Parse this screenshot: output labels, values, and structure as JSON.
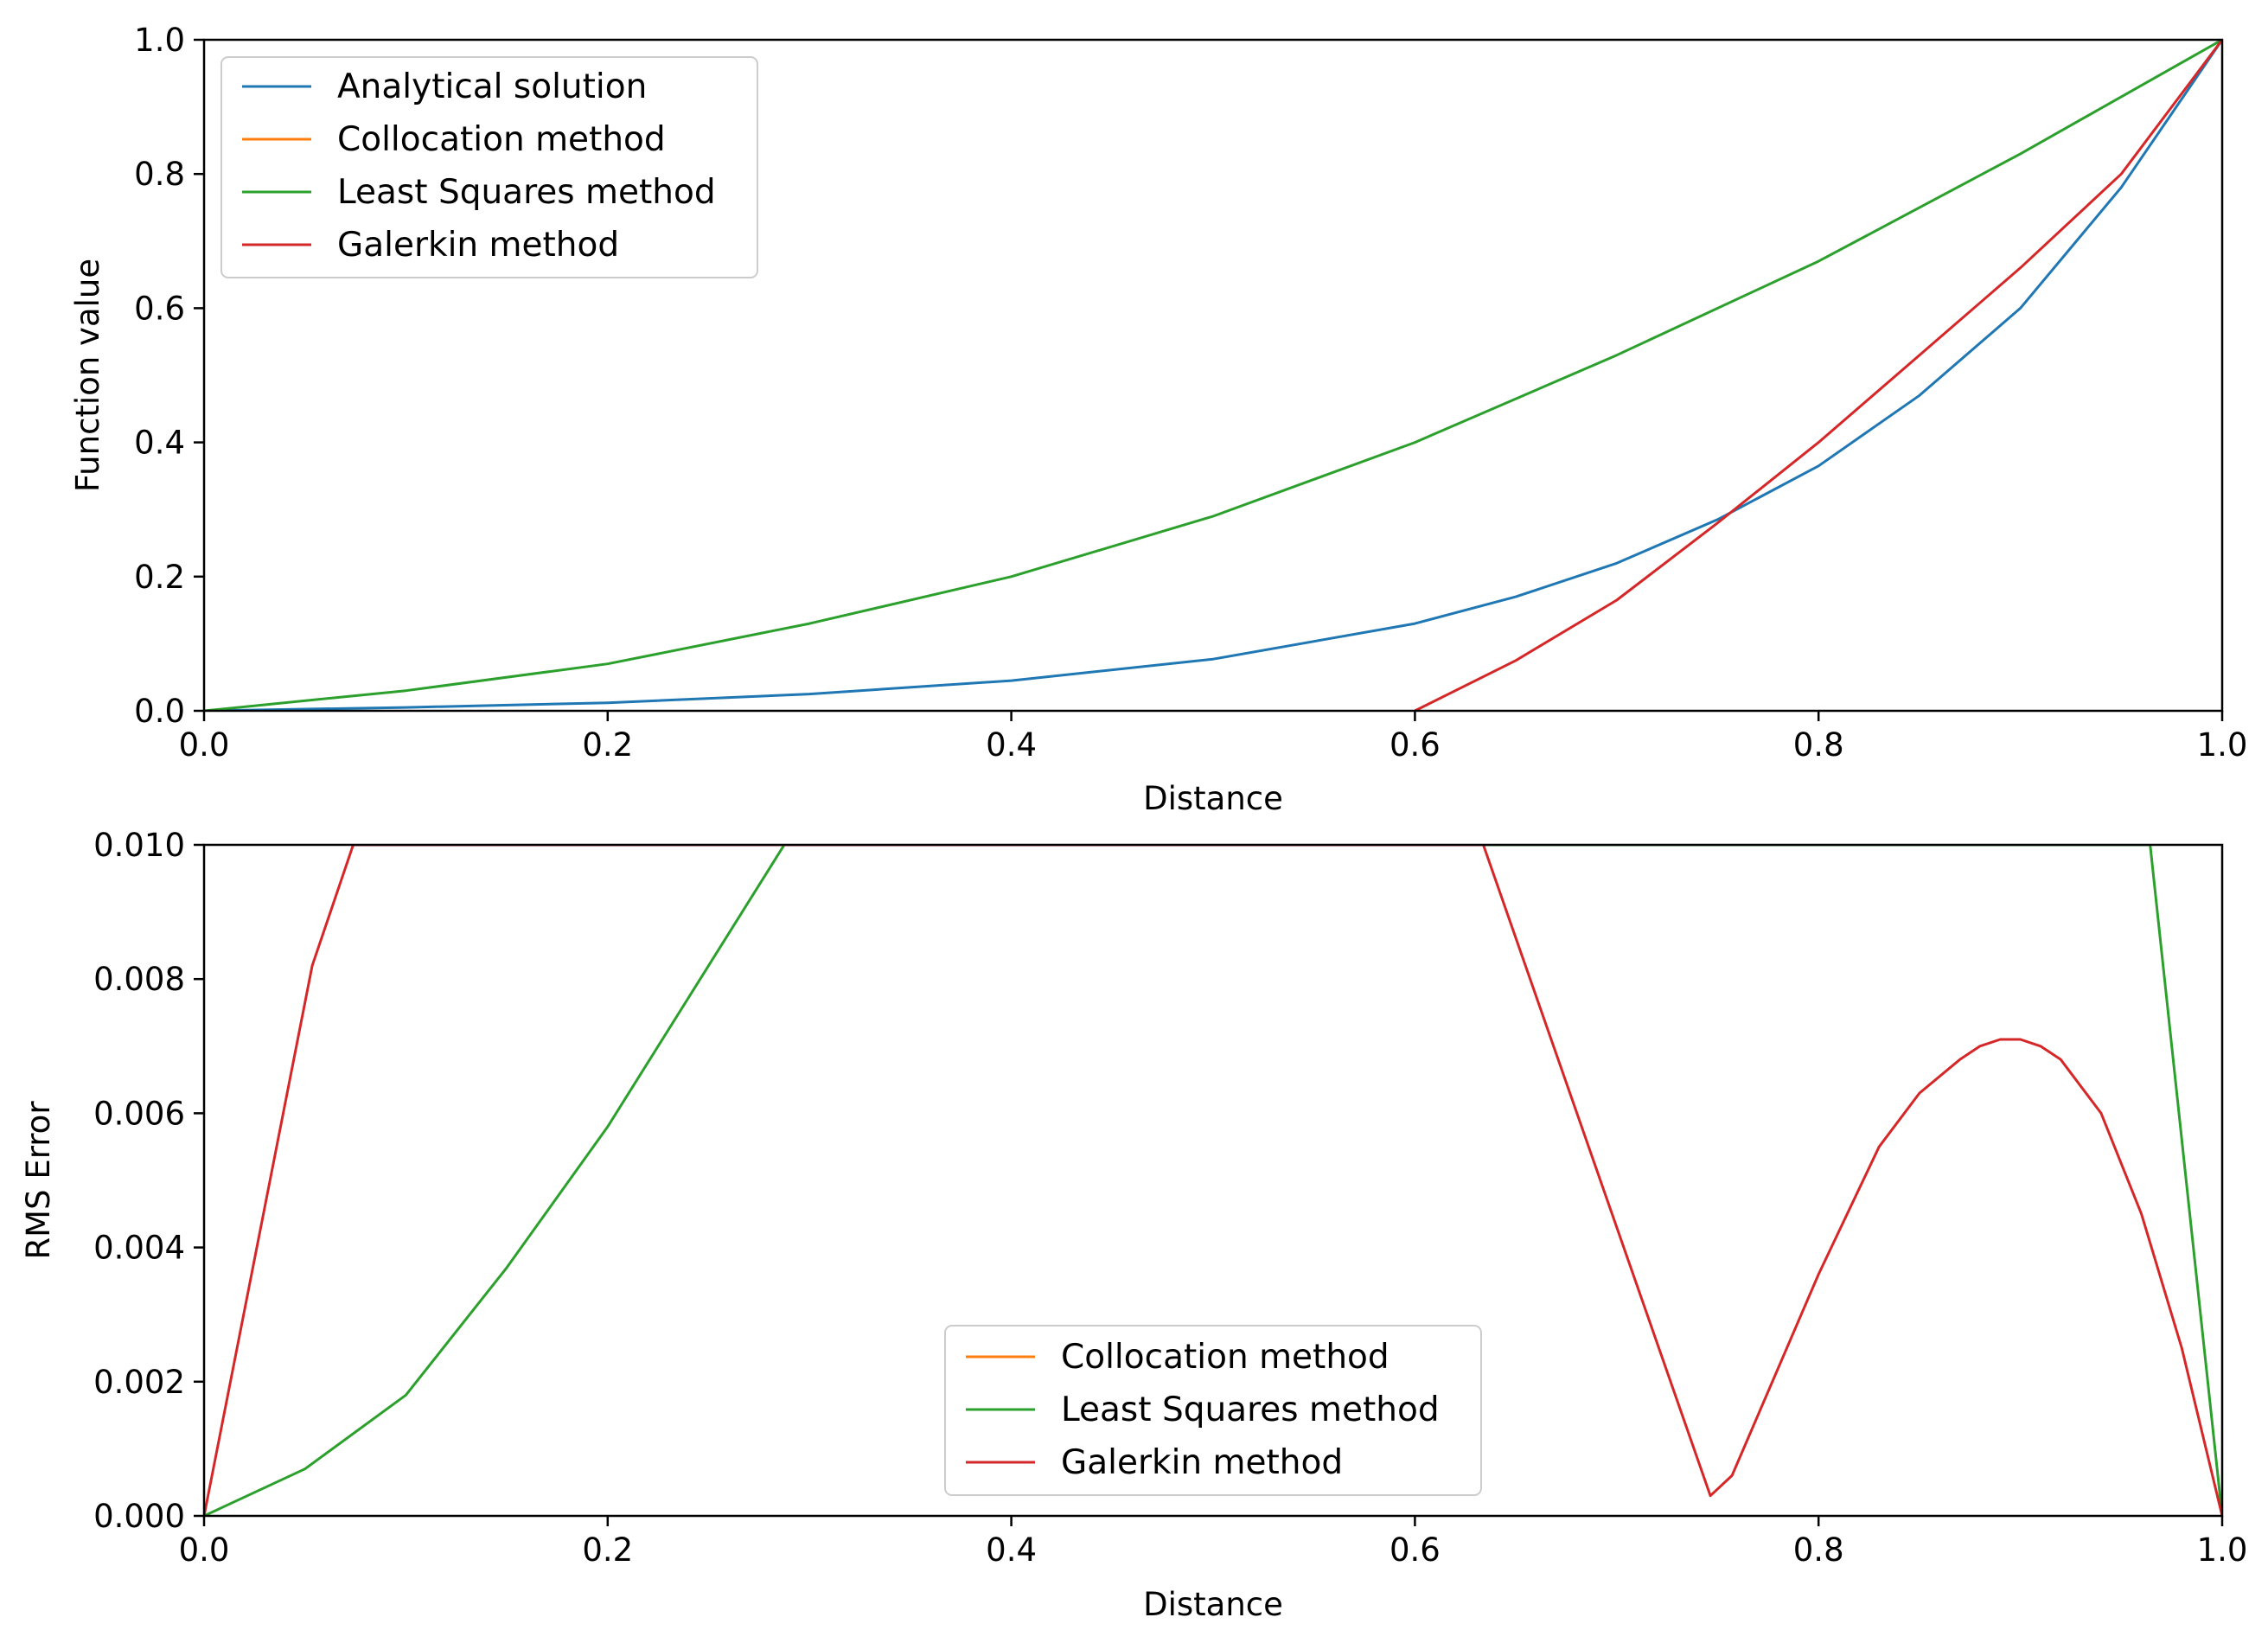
{
  "colors": {
    "analytical": "#1f77b4",
    "collocation": "#ff7f0e",
    "least_squares": "#2ca02c",
    "galerkin": "#d62728",
    "axes": "#000000",
    "legend_border": "#cccccc",
    "background": "#ffffff"
  },
  "chart_data": [
    {
      "type": "line",
      "xlabel": "Distance",
      "ylabel": "Function value",
      "xlim": [
        0.0,
        1.0
      ],
      "ylim": [
        0.0,
        1.0
      ],
      "xticks": [
        "0.0",
        "0.2",
        "0.4",
        "0.6",
        "0.8",
        "1.0"
      ],
      "yticks": [
        "0.0",
        "0.2",
        "0.4",
        "0.6",
        "0.8",
        "1.0"
      ],
      "grid": false,
      "legend_position": "top-left",
      "series": [
        {
          "name": "Analytical solution",
          "color_key": "analytical",
          "x": [
            0.0,
            0.1,
            0.2,
            0.3,
            0.4,
            0.5,
            0.6,
            0.65,
            0.7,
            0.75,
            0.8,
            0.85,
            0.9,
            0.95,
            1.0
          ],
          "y": [
            0.0,
            0.005,
            0.012,
            0.025,
            0.045,
            0.077,
            0.13,
            0.17,
            0.22,
            0.285,
            0.365,
            0.47,
            0.6,
            0.78,
            1.0
          ]
        },
        {
          "name": "Collocation method",
          "color_key": "collocation",
          "x": [],
          "y": []
        },
        {
          "name": "Least Squares method",
          "color_key": "least_squares",
          "x": [
            0.0,
            0.1,
            0.2,
            0.3,
            0.4,
            0.5,
            0.6,
            0.7,
            0.8,
            0.9,
            1.0
          ],
          "y": [
            0.0,
            0.03,
            0.07,
            0.13,
            0.2,
            0.29,
            0.4,
            0.53,
            0.67,
            0.83,
            1.0
          ]
        },
        {
          "name": "Galerkin method",
          "color_key": "galerkin",
          "x": [
            0.6,
            0.65,
            0.7,
            0.75,
            0.8,
            0.85,
            0.9,
            0.95,
            1.0
          ],
          "y": [
            0.0,
            0.075,
            0.165,
            0.28,
            0.4,
            0.53,
            0.66,
            0.8,
            1.0
          ]
        }
      ]
    },
    {
      "type": "line",
      "xlabel": "Distance",
      "ylabel": "RMS Error",
      "xlim": [
        0.0,
        1.0
      ],
      "ylim": [
        0.0,
        0.01
      ],
      "xticks": [
        "0.0",
        "0.2",
        "0.4",
        "0.6",
        "0.8",
        "1.0"
      ],
      "yticks": [
        "0.000",
        "0.002",
        "0.004",
        "0.006",
        "0.008",
        "0.010"
      ],
      "grid": false,
      "legend_position": "lower-center",
      "series": [
        {
          "name": "Collocation method",
          "color_key": "collocation",
          "x": [],
          "y": []
        },
        {
          "name": "Least Squares method",
          "color_key": "least_squares",
          "x": [
            0.0,
            0.05,
            0.1,
            0.15,
            0.2,
            0.25,
            0.2875,
            0.9643,
            1.0
          ],
          "y": [
            0.0,
            0.0007,
            0.0018,
            0.0037,
            0.0058,
            0.0082,
            0.01,
            0.01,
            0.0
          ]
        },
        {
          "name": "Galerkin method",
          "color_key": "galerkin",
          "x": [
            0.0,
            0.0536,
            0.0739,
            0.6339,
            0.7464,
            0.7571,
            0.8,
            0.83,
            0.85,
            0.87,
            0.88,
            0.89,
            0.9,
            0.91,
            0.92,
            0.94,
            0.96,
            0.98,
            1.0
          ],
          "y": [
            0.0,
            0.0082,
            0.01,
            0.01,
            0.0003,
            0.0006,
            0.0036,
            0.0055,
            0.0063,
            0.0068,
            0.007,
            0.0071,
            0.0071,
            0.007,
            0.0068,
            0.006,
            0.0045,
            0.0025,
            0.0
          ]
        }
      ]
    }
  ]
}
